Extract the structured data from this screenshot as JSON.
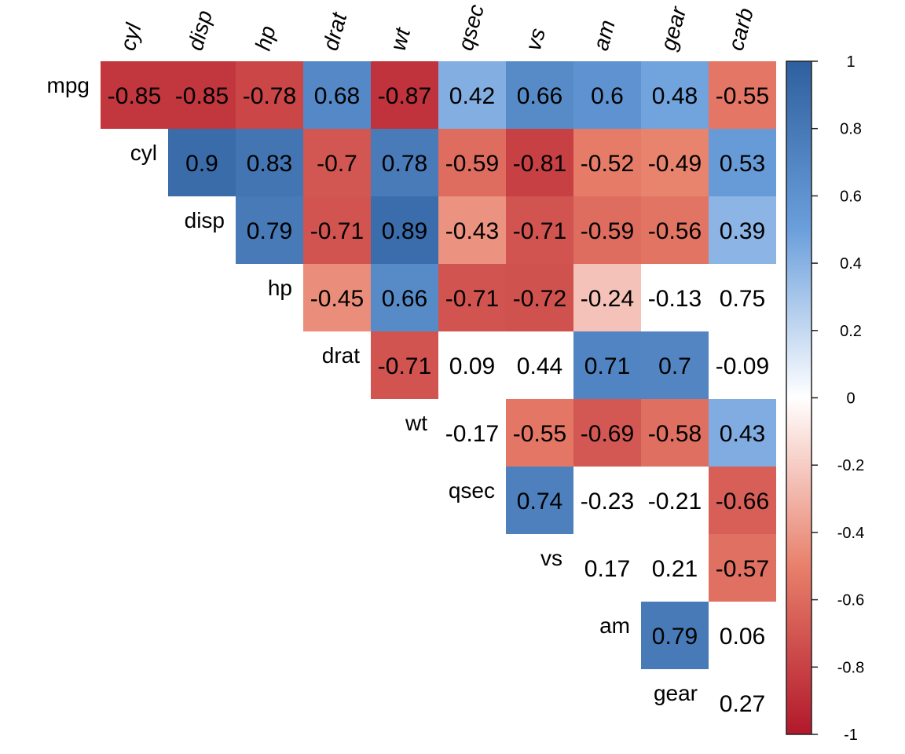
{
  "chart_data": {
    "type": "heatmap",
    "variables": [
      "mpg",
      "cyl",
      "disp",
      "hp",
      "drat",
      "wt",
      "qsec",
      "vs",
      "am",
      "gear",
      "carb"
    ],
    "column_labels": [
      "cyl",
      "disp",
      "hp",
      "drat",
      "wt",
      "qsec",
      "vs",
      "am",
      "gear",
      "carb"
    ],
    "row_labels": [
      "mpg",
      "cyl",
      "disp",
      "hp",
      "drat",
      "wt",
      "qsec",
      "vs",
      "am",
      "gear"
    ],
    "layout": "upper-triangle",
    "matrix": [
      [
        -0.85,
        -0.85,
        -0.78,
        0.68,
        -0.87,
        0.42,
        0.66,
        0.6,
        0.48,
        -0.55
      ],
      [
        0.9,
        0.83,
        -0.7,
        0.78,
        -0.59,
        -0.81,
        -0.52,
        -0.49,
        0.53
      ],
      [
        0.79,
        -0.71,
        0.89,
        -0.43,
        -0.71,
        -0.59,
        -0.56,
        0.39
      ],
      [
        -0.45,
        0.66,
        -0.71,
        -0.72,
        -0.24,
        -0.13,
        0.75
      ],
      [
        -0.71,
        0.09,
        0.44,
        0.71,
        0.7,
        -0.09
      ],
      [
        -0.17,
        -0.55,
        -0.69,
        -0.58,
        0.43
      ],
      [
        0.74,
        -0.23,
        -0.21,
        -0.66
      ],
      [
        0.17,
        0.21,
        -0.57
      ],
      [
        0.79,
        0.06
      ],
      [
        0.27
      ]
    ],
    "value_range": [
      -1,
      1
    ],
    "insignificant_blank_threshold": 0.4,
    "colorbar": {
      "ticks": [
        1,
        0.8,
        0.6,
        0.4,
        0.2,
        0,
        -0.2,
        -0.4,
        -0.6,
        -0.8,
        -1
      ],
      "tick_labels": [
        "1",
        "0.8",
        "0.6",
        "0.4",
        "0.2",
        "0",
        "-0.2",
        "-0.4",
        "-0.6",
        "-0.8",
        "-1"
      ]
    },
    "colors": {
      "negative": "#B2182B",
      "zero": "#FFFFFF",
      "positive": "#2E5F9E",
      "mid_negative": "#E8806B",
      "mid_positive": "#6B9FDC"
    }
  }
}
